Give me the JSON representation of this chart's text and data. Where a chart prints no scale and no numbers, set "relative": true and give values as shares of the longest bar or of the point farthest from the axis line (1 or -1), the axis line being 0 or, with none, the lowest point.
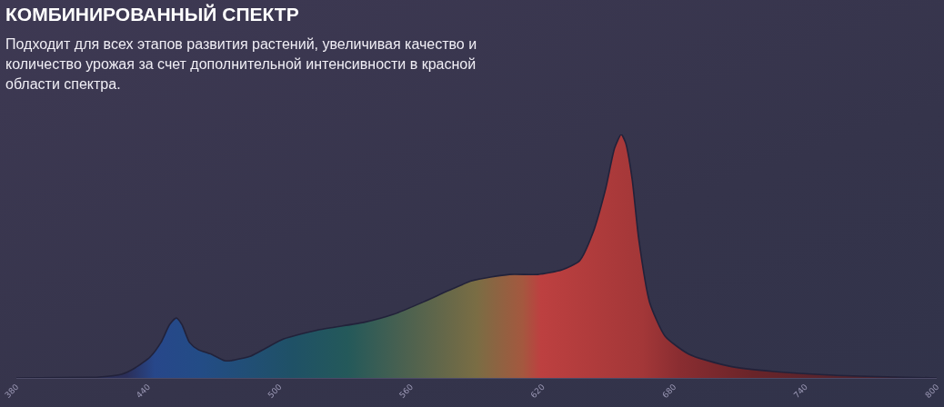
{
  "chart_data": {
    "type": "area",
    "title": "КОМБИНИРОВАННЫЙ СПЕКТР",
    "subtitle": "Подходит для всех этапов развития растений, увеличивая качество и количество урожая за счет дополнительной интенсивности в красной области спектра.",
    "relative": true,
    "xlim": [
      380,
      800
    ],
    "xticks": [
      380,
      440,
      500,
      560,
      620,
      680,
      740,
      800
    ],
    "x": [
      380,
      414,
      418,
      428,
      434,
      441,
      446,
      450,
      453,
      455.5,
      459,
      463,
      469,
      475,
      478,
      487,
      494,
      502,
      518,
      538.5,
      552,
      566,
      577,
      588,
      605,
      618,
      629,
      637,
      643,
      649,
      653,
      656,
      658,
      661,
      664,
      669,
      676,
      687,
      705,
      726,
      753,
      781,
      800
    ],
    "series": [
      {
        "color": "#22223a",
        "values": [
          0,
          0.003,
          0.004,
          0.015,
          0.04,
          0.086,
          0.146,
          0.22,
          0.246,
          0.22,
          0.146,
          0.116,
          0.097,
          0.071,
          0.071,
          0.09,
          0.123,
          0.16,
          0.198,
          0.228,
          0.261,
          0.313,
          0.358,
          0.399,
          0.425,
          0.425,
          0.444,
          0.481,
          0.593,
          0.78,
          0.944,
          1,
          0.966,
          0.817,
          0.571,
          0.31,
          0.172,
          0.097,
          0.049,
          0.026,
          0.011,
          0.004,
          0
        ]
      }
    ]
  }
}
